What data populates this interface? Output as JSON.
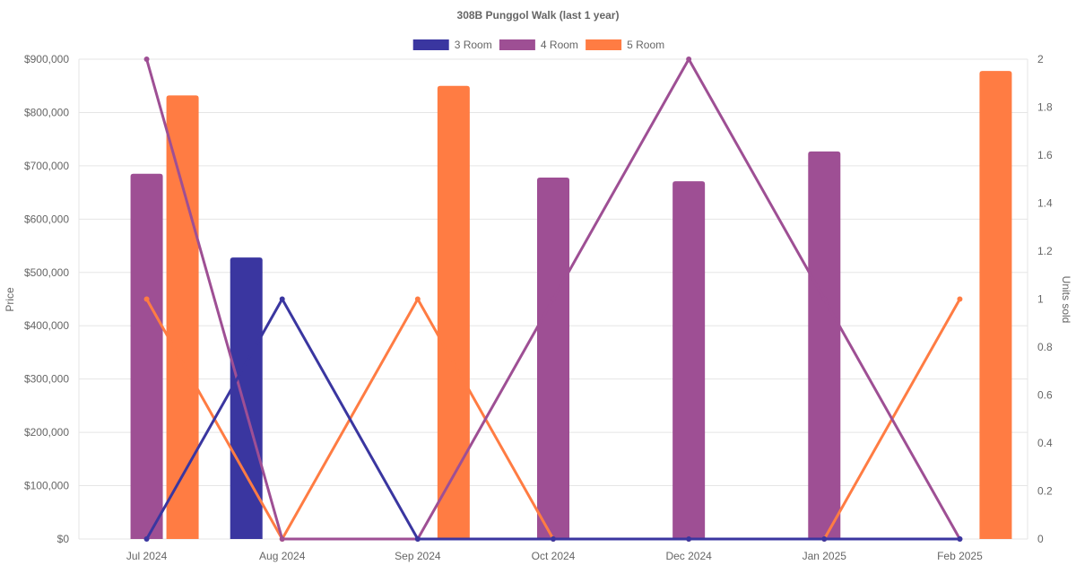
{
  "chart_data": {
    "type": "bar",
    "title": "308B Punggol Walk (last 1 year)",
    "categories": [
      "Jul 2024",
      "Aug 2024",
      "Sep 2024",
      "Oct 2024",
      "Dec 2024",
      "Jan 2025",
      "Feb 2025"
    ],
    "ylabel": "Price",
    "y2label": "Units sold",
    "ylim": [
      0,
      900000
    ],
    "y2lim": [
      0,
      2
    ],
    "y_ticks": [
      "$0",
      "$100,000",
      "$200,000",
      "$300,000",
      "$400,000",
      "$500,000",
      "$600,000",
      "$700,000",
      "$800,000",
      "$900,000"
    ],
    "y2_ticks": [
      "0",
      "0.2",
      "0.4",
      "0.6",
      "0.8",
      "1",
      "1.2",
      "1.4",
      "1.6",
      "1.8",
      "2"
    ],
    "grid": true,
    "legend_position": "top",
    "series": [
      {
        "name": "3 Room",
        "color": "#3a36a0",
        "price": [
          null,
          528000,
          null,
          null,
          null,
          null,
          null
        ],
        "units_sold": [
          0,
          1,
          0,
          0,
          0,
          0,
          0
        ]
      },
      {
        "name": "4 Room",
        "color": "#9e4f94",
        "price": [
          685000,
          null,
          null,
          678000,
          671000,
          727000,
          null
        ],
        "units_sold": [
          2,
          0,
          0,
          1,
          2,
          1,
          0
        ]
      },
      {
        "name": "5 Room",
        "color": "#ff7c43",
        "price": [
          832000,
          null,
          850000,
          null,
          null,
          null,
          878000
        ],
        "units_sold": [
          1,
          0,
          1,
          0,
          0,
          0,
          1
        ]
      }
    ]
  }
}
